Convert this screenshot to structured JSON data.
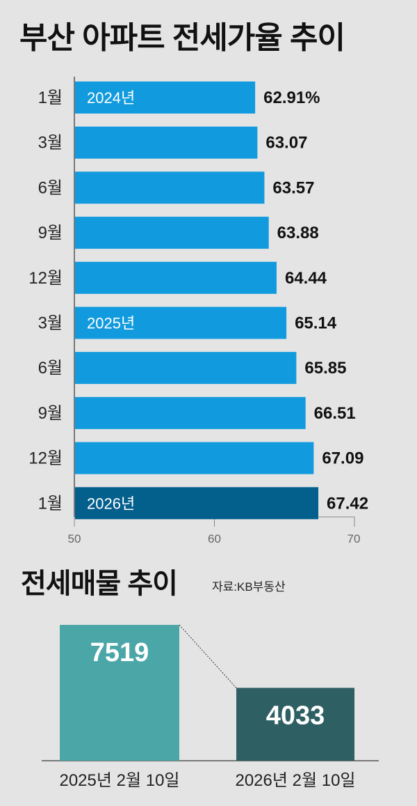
{
  "title": "부산 아파트 전세가율 추이",
  "title2": "전세매물 추이",
  "source": "자료:KB부동산",
  "colors": {
    "bar": "#119bde",
    "bar_highlight": "#035f8c",
    "listing_2025": "#4ba6a8",
    "listing_2026": "#2d5f63",
    "panel_bg": "#e4e4e4"
  },
  "chart_data": [
    {
      "type": "bar",
      "orientation": "horizontal",
      "title": "부산 아파트 전세가율 추이",
      "categories": [
        "1월",
        "3월",
        "6월",
        "9월",
        "12월",
        "3월",
        "6월",
        "9월",
        "12월",
        "1월"
      ],
      "values": [
        62.91,
        63.07,
        63.57,
        63.88,
        64.44,
        65.14,
        65.85,
        66.51,
        67.09,
        67.42
      ],
      "value_labels": [
        "62.91%",
        "63.07",
        "63.57",
        "63.88",
        "64.44",
        "65.14",
        "65.85",
        "66.51",
        "67.09",
        "67.42"
      ],
      "year_markers": [
        {
          "index": 0,
          "label": "2024년"
        },
        {
          "index": 5,
          "label": "2025년"
        },
        {
          "index": 9,
          "label": "2026년"
        }
      ],
      "highlight_index": 9,
      "xlim": [
        50,
        70
      ],
      "xticks": [
        "50",
        "60",
        "70"
      ]
    },
    {
      "type": "bar",
      "title": "전세매물 추이",
      "categories": [
        "2025년 2월 10일",
        "2026년 2월 10일"
      ],
      "values": [
        7519,
        4033
      ],
      "value_labels": [
        "7519",
        "4033"
      ]
    }
  ]
}
